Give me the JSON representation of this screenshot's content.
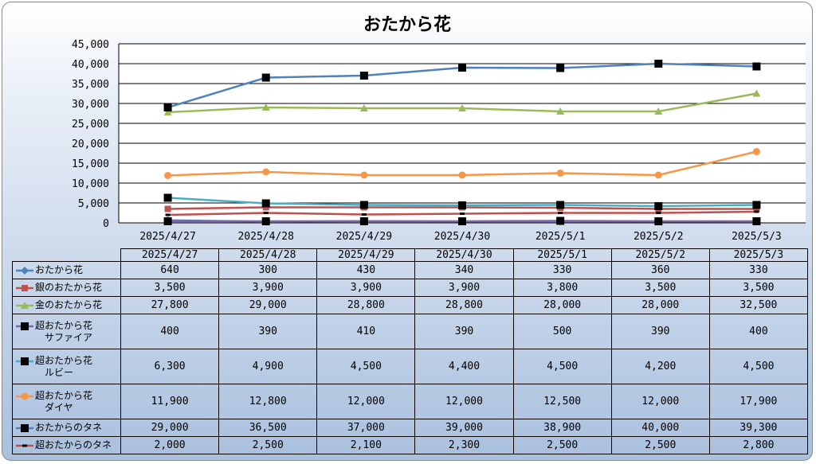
{
  "chart_data": {
    "type": "line",
    "title": "おたから花",
    "xlabel": "",
    "ylabel": "",
    "ylim": [
      0,
      45000
    ],
    "yticks": [
      "0",
      "5,000",
      "10,000",
      "15,000",
      "20,000",
      "25,000",
      "30,000",
      "35,000",
      "40,000",
      "45,000"
    ],
    "y_tick_values": [
      0,
      5000,
      10000,
      15000,
      20000,
      25000,
      30000,
      35000,
      40000,
      45000
    ],
    "grid": true,
    "legend": "data-table",
    "categories": [
      "2025/4/27",
      "2025/4/28",
      "2025/4/29",
      "2025/4/30",
      "2025/5/1",
      "2025/5/2",
      "2025/5/3"
    ],
    "series": [
      {
        "name": "おたから花",
        "name_sub": "",
        "color": "#4f81bd",
        "marker": "diamond",
        "line": true,
        "values": [
          640,
          300,
          430,
          340,
          330,
          360,
          330
        ],
        "labels": [
          "640",
          "300",
          "430",
          "340",
          "330",
          "360",
          "330"
        ]
      },
      {
        "name": "銀のおたから花",
        "name_sub": "",
        "color": "#c0504d",
        "marker": "square",
        "line": true,
        "values": [
          3500,
          3900,
          3900,
          3900,
          3800,
          3500,
          3500
        ],
        "labels": [
          "3,500",
          "3,900",
          "3,900",
          "3,900",
          "3,800",
          "3,500",
          "3,500"
        ]
      },
      {
        "name": "金のおたから花",
        "name_sub": "",
        "color": "#9bbb59",
        "marker": "triangle",
        "line": true,
        "values": [
          27800,
          29000,
          28800,
          28800,
          28000,
          28000,
          32500
        ],
        "labels": [
          "27,800",
          "29,000",
          "28,800",
          "28,800",
          "28,000",
          "28,000",
          "32,500"
        ]
      },
      {
        "name": "超おたから花",
        "name_sub": "サファイア",
        "color": "#8064a2",
        "marker": "square-black",
        "line": true,
        "values": [
          400,
          390,
          410,
          390,
          500,
          390,
          400
        ],
        "labels": [
          "400",
          "390",
          "410",
          "390",
          "500",
          "390",
          "400"
        ]
      },
      {
        "name": "超おたから花",
        "name_sub": "ルビー",
        "color": "#4bacc6",
        "marker": "square-black",
        "line": true,
        "values": [
          6300,
          4900,
          4500,
          4400,
          4500,
          4200,
          4500
        ],
        "labels": [
          "6,300",
          "4,900",
          "4,500",
          "4,400",
          "4,500",
          "4,200",
          "4,500"
        ]
      },
      {
        "name": "超おたから花",
        "name_sub": "ダイヤ",
        "color": "#f79646",
        "marker": "circle",
        "line": true,
        "values": [
          11900,
          12800,
          12000,
          12000,
          12500,
          12000,
          17900
        ],
        "labels": [
          "11,900",
          "12,800",
          "12,000",
          "12,000",
          "12,500",
          "12,000",
          "17,900"
        ]
      },
      {
        "name": "おたからのタネ",
        "name_sub": "",
        "color": "#4f81bd",
        "marker": "square-black",
        "line": true,
        "values": [
          29000,
          36500,
          37000,
          39000,
          38900,
          40000,
          39300
        ],
        "labels": [
          "29,000",
          "36,500",
          "37,000",
          "39,000",
          "38,900",
          "40,000",
          "39,300"
        ]
      },
      {
        "name": "超おたからのタネ",
        "name_sub": "",
        "color": "#c0504d",
        "marker": "dash-black",
        "line": true,
        "values": [
          2000,
          2500,
          2100,
          2300,
          2500,
          2500,
          2800
        ],
        "labels": [
          "2,000",
          "2,500",
          "2,100",
          "2,300",
          "2,500",
          "2,500",
          "2,800"
        ]
      }
    ]
  }
}
